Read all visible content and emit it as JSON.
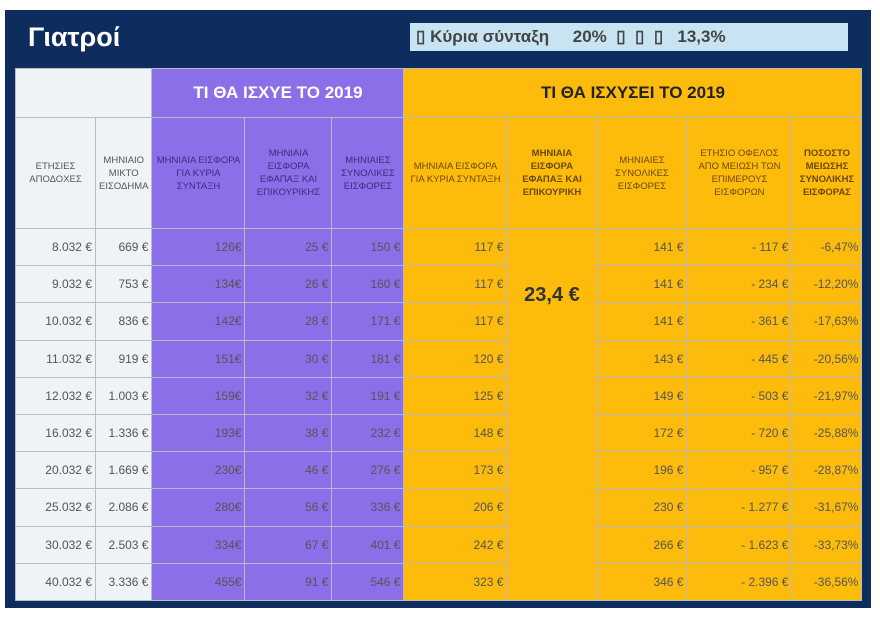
{
  "title": "Γιατροί",
  "banner": "▯ Κύρια σύνταξη     20%  ▯  ▯  ▯   13,3%",
  "group_headers": [
    "ΤΙ ΘΑ ΙΣΧΥΕ ΤΟ 2019",
    "ΤΙ ΘΑ ΙΣΧΥΣΕΙ ΤΟ 2019"
  ],
  "columns": [
    "ΕΤΗΣΙΕΣ ΑΠΟΔΟΧΕΣ",
    "ΜΗΝΙΑΙΟ ΜΙΚΤΟ ΕΙΣΟΔΗΜΑ",
    "ΜΗΝΙΑΙΑ ΕΙΣΦΟΡΑ ΓΙΑ ΚΥΡΙΑ ΣΥΝΤΑΞΗ",
    "ΜΗΝΙΑΙΑ ΕΙΣΦΟΡΑ ΕΦΑΠΑΞ ΚΑΙ ΕΠΙΚΟΥΡΙΚΗΣ",
    "ΜΗΝΙΑΙΕΣ ΣΥΝΟΛΙΚΕΣ ΕΙΣΦΟΡΕΣ",
    "ΜΗΝΙΑΙΑ ΕΙΣΦΟΡΑ ΓΙΑ ΚΥΡΙΑ ΣΥΝΤΑΞΗ",
    "ΜΗΝΙΑΙΑ ΕΙΣΦΟΡΑ ΕΦΑΠΑΞ ΚΑΙ ΕΠΙΚΟΥΡΙΚΗ",
    "ΜΗΝΙΑΙΕΣ ΣΥΝΟΛΙΚΕΣ ΕΙΣΦΟΡΕΣ",
    "ΕΤΗΣΙΟ ΟΦΕΛΟΣ ΑΠΟ ΜΕΙΩΣΗ ΤΩΝ ΕΠΙΜΕΡΟΥΣ ΕΙΣΦΟΡΩΝ",
    "ΠΟΣΟΣΤΟ ΜΕΙΩΣΗΣ ΣΥΝΟΛΙΚΗΣ ΕΙΣΦΟΡΑΣ"
  ],
  "merged_value": "23,4 €",
  "rows": [
    [
      "8.032 €",
      "669 €",
      "126€",
      "25 €",
      "150 €",
      "117 €",
      "141 €",
      "-  117 €",
      "-6,47%"
    ],
    [
      "9.032 €",
      "753 €",
      "134€",
      "26 €",
      "160 €",
      "117 €",
      "141 €",
      "-  234 €",
      "-12,20%"
    ],
    [
      "10.032 €",
      "836 €",
      "142€",
      "28 €",
      "171 €",
      "117 €",
      "141 €",
      "-  361 €",
      "-17,63%"
    ],
    [
      "11.032 €",
      "919 €",
      "151€",
      "30 €",
      "181 €",
      "120 €",
      "143 €",
      "-  445 €",
      "-20,56%"
    ],
    [
      "12.032 €",
      "1.003 €",
      "159€",
      "32 €",
      "191 €",
      "125 €",
      "149 €",
      "-  503 €",
      "-21,97%"
    ],
    [
      "16.032 €",
      "1.336 €",
      "193€",
      "38 €",
      "232 €",
      "148 €",
      "172 €",
      "-  720 €",
      "-25,88%"
    ],
    [
      "20.032 €",
      "1.669 €",
      "230€",
      "46 €",
      "276 €",
      "173 €",
      "196 €",
      "-  957 €",
      "-28,87%"
    ],
    [
      "25.032 €",
      "2.086 €",
      "280€",
      "56 €",
      "336 €",
      "206 €",
      "230 €",
      "-  1.277 €",
      "-31,67%"
    ],
    [
      "30.032 €",
      "2.503 €",
      "334€",
      "67 €",
      "401 €",
      "242 €",
      "266 €",
      "-  1.623 €",
      "-33,73%"
    ],
    [
      "40.032 €",
      "3.336 €",
      "455€",
      "91 €",
      "546 €",
      "323 €",
      "346 €",
      "-  2.396 €",
      "-36,56%"
    ]
  ]
}
